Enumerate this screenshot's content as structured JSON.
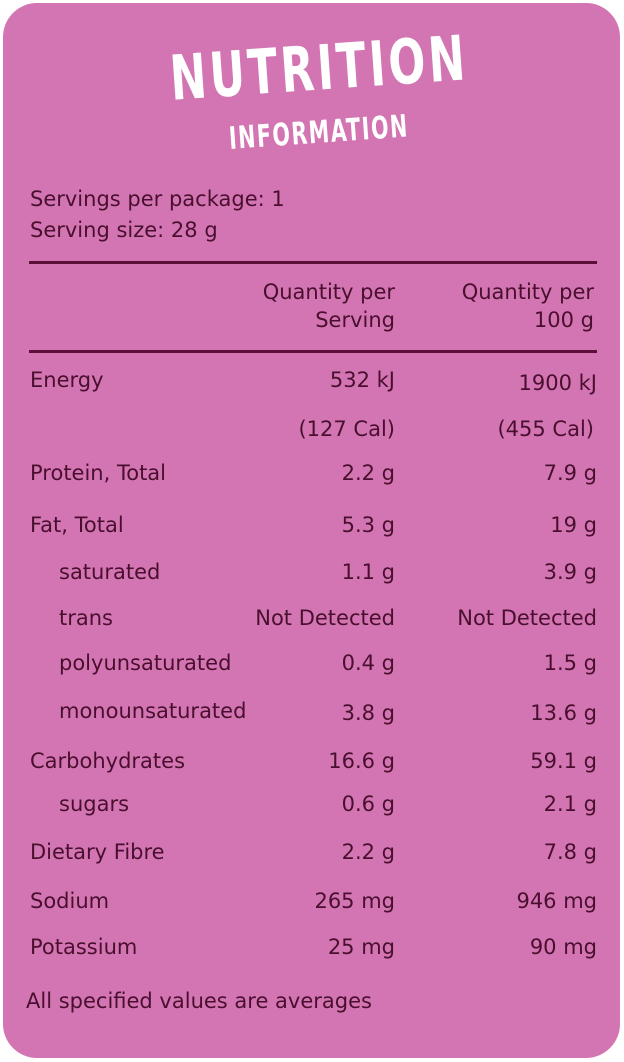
{
  "title": {
    "line1": "NUTRITION",
    "line2": "INFORMATION"
  },
  "servings_per_package": "Servings per package: 1",
  "serving_size": "Serving size: 28 g",
  "header": {
    "col1_line1": "Quantity per",
    "col1_line2": "Serving",
    "col2_line1": "Quantity per",
    "col2_line2": "100 g"
  },
  "rows": [
    {
      "label": "Energy",
      "per_serving": "532 kJ",
      "per_100g": "1900 kJ"
    },
    {
      "label": "",
      "per_serving": "(127 Cal)",
      "per_100g": "(455 Cal)"
    },
    {
      "label": "Protein, Total",
      "per_serving": "2.2 g",
      "per_100g": "7.9 g"
    },
    {
      "label": "Fat, Total",
      "per_serving": "5.3 g",
      "per_100g": "19 g"
    },
    {
      "label": "saturated",
      "per_serving": "1.1 g",
      "per_100g": "3.9 g"
    },
    {
      "label": "trans",
      "per_serving": "Not Detected",
      "per_100g": "Not Detected"
    },
    {
      "label": "polyunsaturated",
      "per_serving": "0.4 g",
      "per_100g": "1.5 g"
    },
    {
      "label": "monounsaturated",
      "per_serving": "3.8 g",
      "per_100g": "13.6 g"
    },
    {
      "label": "Carbohydrates",
      "per_serving": "16.6 g",
      "per_100g": "59.1 g"
    },
    {
      "label": "sugars",
      "per_serving": "0.6 g",
      "per_100g": "2.1 g"
    },
    {
      "label": "Dietary Fibre",
      "per_serving": "2.2 g",
      "per_100g": "7.8 g"
    },
    {
      "label": "Sodium",
      "per_serving": "265 mg",
      "per_100g": "946 mg"
    },
    {
      "label": "Potassium",
      "per_serving": "25 mg",
      "per_100g": "90 mg"
    }
  ],
  "footnote": "All specified values are averages",
  "colors": {
    "panel": "#d275b2",
    "text": "#4a0f2e",
    "rule": "#5c1037",
    "title": "#ffffff"
  }
}
